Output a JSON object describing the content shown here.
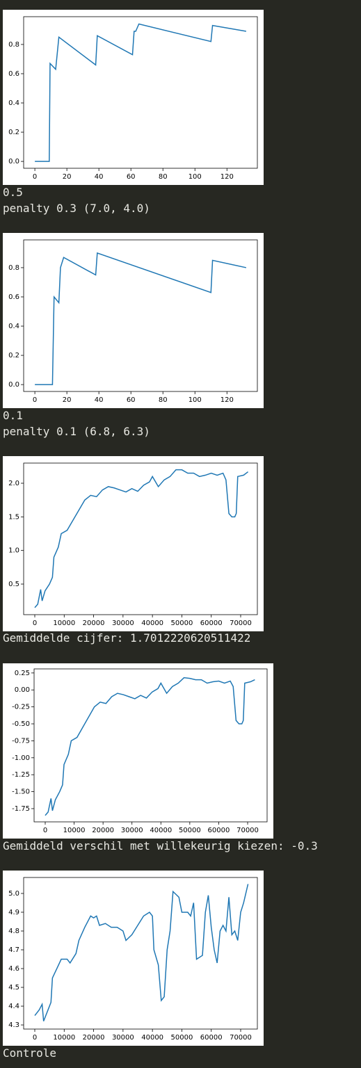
{
  "chart_data": [
    {
      "type": "line",
      "color": "#1f77b4",
      "x": [
        0,
        9,
        9.5,
        13,
        15,
        38,
        39,
        61,
        62,
        63,
        65,
        110,
        111,
        132
      ],
      "values": [
        0,
        0,
        0.67,
        0.63,
        0.85,
        0.66,
        0.86,
        0.73,
        0.89,
        0.89,
        0.94,
        0.82,
        0.93,
        0.89
      ],
      "xlim": [
        -7,
        139
      ],
      "ylim": [
        -0.047,
        0.99
      ],
      "xticks": [
        0,
        20,
        40,
        60,
        80,
        100,
        120
      ],
      "yticks": [
        {
          "value": 0,
          "label": "0.0"
        },
        0.2,
        0.4,
        0.6,
        0.8
      ]
    },
    {
      "type": "line",
      "color": "#1f77b4",
      "x": [
        0,
        11,
        12,
        15,
        16,
        18,
        38,
        39,
        110,
        111,
        132
      ],
      "values": [
        0,
        0,
        0.6,
        0.56,
        0.8,
        0.87,
        0.75,
        0.9,
        0.63,
        0.85,
        0.8
      ],
      "xlim": [
        -7,
        139
      ],
      "ylim": [
        -0.047,
        0.99
      ],
      "xticks": [
        0,
        20,
        40,
        60,
        80,
        100,
        120
      ],
      "yticks": [
        {
          "value": 0,
          "label": "0.0"
        },
        0.2,
        0.4,
        0.6,
        0.8
      ]
    },
    {
      "type": "line",
      "color": "#1f77b4",
      "x": [
        0,
        1000,
        2000,
        2500,
        3500,
        5000,
        6000,
        6500,
        8000,
        9000,
        11000,
        13000,
        15000,
        17000,
        19000,
        21000,
        23000,
        25000,
        27000,
        29000,
        31000,
        33000,
        35000,
        37000,
        39000,
        40000,
        42000,
        44000,
        46000,
        48000,
        50000,
        52000,
        54000,
        56000,
        58000,
        60000,
        62000,
        64000,
        65000,
        66000,
        67000,
        68000,
        68500,
        69000,
        71000,
        72500
      ],
      "values": [
        0.15,
        0.2,
        0.42,
        0.25,
        0.4,
        0.5,
        0.6,
        0.9,
        1.05,
        1.25,
        1.3,
        1.45,
        1.6,
        1.75,
        1.82,
        1.8,
        1.9,
        1.95,
        1.93,
        1.9,
        1.87,
        1.92,
        1.88,
        1.97,
        2.02,
        2.1,
        1.95,
        2.05,
        2.1,
        2.2,
        2.2,
        2.15,
        2.15,
        2.1,
        2.12,
        2.15,
        2.12,
        2.15,
        2.05,
        1.55,
        1.5,
        1.5,
        1.55,
        2.1,
        2.12,
        2.17
      ],
      "xlim": [
        -3784,
        75676
      ],
      "ylim": [
        0.045,
        2.3
      ],
      "xticks": [
        0,
        10000,
        20000,
        30000,
        40000,
        50000,
        60000,
        70000
      ],
      "yticks": [
        0.5,
        {
          "value": 1,
          "label": "1.0"
        },
        1.5,
        {
          "value": 2,
          "label": "2.0"
        }
      ]
    },
    {
      "type": "line",
      "color": "#1f77b4",
      "x": [
        0,
        1000,
        2000,
        2500,
        3500,
        5000,
        6000,
        6500,
        8000,
        9000,
        11000,
        13000,
        15000,
        17000,
        19000,
        21000,
        23000,
        25000,
        27000,
        29000,
        31000,
        33000,
        35000,
        37000,
        39000,
        40000,
        42000,
        44000,
        46000,
        48000,
        50000,
        52000,
        54000,
        56000,
        58000,
        60000,
        62000,
        64000,
        65000,
        66000,
        67000,
        68000,
        68500,
        69000,
        71000,
        72500
      ],
      "values": [
        -1.85,
        -1.8,
        -1.6,
        -1.78,
        -1.62,
        -1.5,
        -1.4,
        -1.1,
        -0.95,
        -0.75,
        -0.7,
        -0.55,
        -0.4,
        -0.25,
        -0.18,
        -0.2,
        -0.1,
        -0.05,
        -0.07,
        -0.1,
        -0.13,
        -0.08,
        -0.12,
        -0.03,
        0.02,
        0.1,
        -0.05,
        0.05,
        0.1,
        0.18,
        0.17,
        0.15,
        0.15,
        0.1,
        0.12,
        0.13,
        0.1,
        0.13,
        0.05,
        -0.45,
        -0.5,
        -0.5,
        -0.45,
        0.1,
        0.12,
        0.15
      ],
      "xlim": [
        -3849,
        76735
      ],
      "ylim": [
        -1.945,
        0.31
      ],
      "xticks": [
        0,
        10000,
        20000,
        30000,
        40000,
        50000,
        60000,
        70000
      ],
      "yticks": [
        0.25,
        {
          "value": 0,
          "label": "0.00"
        },
        -0.25,
        {
          "value": -0.5,
          "label": "-0.50"
        },
        -0.75,
        {
          "value": -1,
          "label": "-1.00"
        },
        -1.25,
        {
          "value": -1.5,
          "label": "-1.50"
        },
        -1.75
      ]
    },
    {
      "type": "line",
      "color": "#1f77b4",
      "x": [
        0,
        1500,
        2500,
        3000,
        4500,
        5500,
        6000,
        7500,
        9000,
        11000,
        12000,
        14000,
        15000,
        17000,
        19000,
        20000,
        21000,
        22000,
        24000,
        26000,
        28000,
        30000,
        31000,
        33000,
        35000,
        37000,
        39000,
        40000,
        40500,
        42000,
        43000,
        44000,
        45000,
        46000,
        47000,
        49000,
        50000,
        52000,
        53000,
        54000,
        55000,
        57000,
        58000,
        59000,
        60000,
        61000,
        62000,
        63000,
        64000,
        65000,
        66000,
        67000,
        68000,
        69000,
        70000,
        71000,
        72500
      ],
      "values": [
        4.35,
        4.38,
        4.41,
        4.32,
        4.38,
        4.42,
        4.55,
        4.6,
        4.65,
        4.65,
        4.63,
        4.68,
        4.75,
        4.82,
        4.88,
        4.87,
        4.88,
        4.83,
        4.84,
        4.82,
        4.82,
        4.8,
        4.75,
        4.78,
        4.83,
        4.88,
        4.9,
        4.88,
        4.7,
        4.62,
        4.43,
        4.45,
        4.7,
        4.8,
        5.01,
        4.98,
        4.9,
        4.9,
        4.88,
        4.95,
        4.65,
        4.67,
        4.9,
        4.99,
        4.82,
        4.7,
        4.63,
        4.8,
        4.83,
        4.8,
        4.98,
        4.78,
        4.8,
        4.75,
        4.9,
        4.95,
        5.05
      ],
      "xlim": [
        -3784,
        75676
      ],
      "ylim": [
        4.278,
        5.085
      ],
      "xticks": [
        0,
        10000,
        20000,
        30000,
        40000,
        50000,
        60000,
        70000
      ],
      "yticks": [
        4.3,
        4.4,
        4.5,
        4.6,
        4.7,
        4.8,
        4.9,
        {
          "value": 5,
          "label": "5.0"
        }
      ]
    }
  ],
  "output_texts": [
    "0.5",
    "penalty 0.3 (7.0, 4.0)",
    "0.1",
    "penalty 0.1 (6.8, 6.3)",
    "Gemiddelde cijfer: 1.7012220620511422",
    "Gemiddeld verschil met willekeurig kiezen: -0.3",
    "Controle"
  ]
}
